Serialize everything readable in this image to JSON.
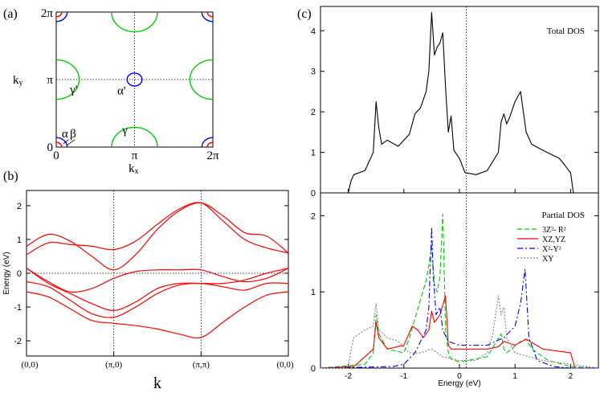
{
  "chart_data": [
    {
      "panel_label": "(a)",
      "type": "scatter",
      "xlabel": "k",
      "xlabel_sub": "x",
      "ylabel": "k",
      "ylabel_sub": "y",
      "xticks": [
        "0",
        "π",
        "2π"
      ],
      "yticks": [
        "0",
        "π",
        "2π"
      ],
      "grid": "dotted lines at π",
      "annotations": [
        {
          "text": "α",
          "x": 0.22,
          "y": 0.45
        },
        {
          "text": "β",
          "x": 0.55,
          "y": 0.45
        },
        {
          "text": "γ'",
          "x": 0.55,
          "y": 2.5
        },
        {
          "text": "α'",
          "x": 2.45,
          "y": 2.45
        },
        {
          "text": "γ",
          "x": 2.65,
          "y": 0.62
        }
      ],
      "pockets": [
        {
          "color": "#ff0000",
          "center": [
            0,
            0
          ],
          "radius": 0.22
        },
        {
          "color": "#0000ff",
          "center": [
            0,
            0
          ],
          "radius": 0.44
        },
        {
          "color": "#00cc00",
          "center": [
            3.1416,
            0
          ],
          "radius": 0.92
        },
        {
          "color": "#00cc00",
          "center": [
            0,
            3.1416
          ],
          "radius": 0.92
        },
        {
          "color": "#0000ff",
          "center": [
            3.1416,
            3.1416
          ],
          "radius": 0.3
        }
      ]
    },
    {
      "panel_label": "(b)",
      "type": "line",
      "xlabel": "k",
      "ylabel": "Energy (eV)",
      "xticks": [
        "(0,0)",
        "(π,0)",
        "(π,π)",
        "(0,0)"
      ],
      "yticks": [
        -2,
        -1,
        0,
        1,
        2
      ],
      "ylim": [
        -2.45,
        2.45
      ],
      "color": "#ff0000",
      "x": [
        0,
        0.25,
        0.5,
        0.75,
        1,
        1.25,
        1.5,
        1.75,
        2,
        2.25,
        2.5,
        2.75,
        3
      ],
      "bands": [
        [
          0.8,
          1.15,
          0.95,
          0.5,
          0.1,
          0.55,
          1.3,
          1.85,
          2.08,
          1.7,
          1.2,
          1.1,
          0.6
        ],
        [
          0.55,
          0.9,
          0.85,
          0.8,
          0.7,
          0.95,
          1.45,
          1.9,
          2.08,
          1.55,
          1.0,
          0.75,
          0.6
        ],
        [
          0.15,
          -0.25,
          -0.55,
          -0.45,
          -0.15,
          0.05,
          0.1,
          0.1,
          0.1,
          -0.1,
          -0.25,
          -0.15,
          0.15
        ],
        [
          0.15,
          -0.3,
          -0.6,
          -0.9,
          -1.1,
          -0.85,
          -0.45,
          -0.3,
          -0.3,
          -0.3,
          -0.2,
          0.0,
          0.15
        ],
        [
          -0.25,
          -0.4,
          -0.8,
          -1.2,
          -1.3,
          -1.0,
          -0.6,
          -0.35,
          -0.3,
          -0.4,
          -0.5,
          -0.3,
          -0.3
        ],
        [
          -0.55,
          -0.7,
          -1.05,
          -1.4,
          -1.48,
          -1.55,
          -1.65,
          -1.8,
          -1.9,
          -1.45,
          -1.0,
          -0.65,
          -0.55
        ]
      ]
    },
    {
      "panel_label": "(c)",
      "type": "line",
      "subpanel_title": "Total DOS",
      "xlim": [
        -2.5,
        2.5
      ],
      "ylim": [
        0,
        4.6
      ],
      "yticks": [
        0,
        1,
        2,
        3,
        4
      ],
      "series": [
        {
          "color": "#000000",
          "x": [
            -2.5,
            -2.0,
            -1.95,
            -1.9,
            -1.7,
            -1.55,
            -1.5,
            -1.45,
            -1.4,
            -1.3,
            -1.1,
            -0.9,
            -0.8,
            -0.7,
            -0.6,
            -0.55,
            -0.5,
            -0.45,
            -0.4,
            -0.35,
            -0.3,
            -0.25,
            -0.2,
            -0.15,
            -0.1,
            -0.05,
            0.0,
            0.1,
            0.3,
            0.5,
            0.7,
            0.75,
            0.8,
            0.85,
            0.9,
            1.0,
            1.1,
            1.2,
            1.3,
            1.5,
            1.8,
            2.0,
            2.05,
            2.5
          ],
          "y": [
            0,
            0,
            0.3,
            0.45,
            0.55,
            1.0,
            2.25,
            1.6,
            1.2,
            1.3,
            1.15,
            1.45,
            1.95,
            2.1,
            2.5,
            3.0,
            4.45,
            3.4,
            3.6,
            3.7,
            3.95,
            2.6,
            1.5,
            1.9,
            1.05,
            0.95,
            0.85,
            0.5,
            0.45,
            0.55,
            1.0,
            1.75,
            1.95,
            1.7,
            1.85,
            2.25,
            2.5,
            1.5,
            1.2,
            1.05,
            0.85,
            0.5,
            0,
            0
          ]
        }
      ]
    },
    {
      "panel_label": "",
      "type": "line",
      "subpanel_title": "Partial DOS",
      "xlabel": "Energy (eV)",
      "xlim": [
        -2.5,
        2.5
      ],
      "xticks": [
        -2,
        -1,
        0,
        1,
        2
      ],
      "ylim": [
        0,
        2.3
      ],
      "yticks": [
        0,
        1,
        2
      ],
      "legend": "top-right",
      "series": [
        {
          "name": "3Z²- R²",
          "color": "#00cc00",
          "dash": "6,3",
          "x": [
            -2.5,
            -1.7,
            -1.55,
            -1.5,
            -1.45,
            -1.3,
            -1.0,
            -0.9,
            -0.8,
            -0.7,
            -0.6,
            -0.55,
            -0.5,
            -0.45,
            -0.4,
            -0.35,
            -0.3,
            -0.28,
            -0.25,
            -0.2,
            -0.15,
            0.0,
            0.5,
            0.75,
            0.8,
            0.85,
            1.1,
            1.2,
            1.3,
            1.6,
            2.0,
            2.5
          ],
          "y": [
            0,
            0.05,
            0.2,
            0.7,
            0.45,
            0.25,
            0.2,
            0.4,
            0.65,
            0.9,
            1.15,
            1.35,
            1.6,
            1.1,
            1.0,
            1.2,
            2.02,
            1.5,
            0.5,
            0.2,
            0.12,
            0.08,
            0.15,
            0.45,
            0.25,
            0.2,
            0.35,
            0.38,
            0.25,
            0.1,
            0.02,
            0
          ]
        },
        {
          "name": "XZ,YZ",
          "color": "#ff0000",
          "dash": "",
          "x": [
            -2.5,
            -1.9,
            -1.7,
            -1.55,
            -1.5,
            -1.45,
            -1.3,
            -1.0,
            -0.85,
            -0.75,
            -0.65,
            -0.55,
            -0.5,
            -0.45,
            -0.35,
            -0.25,
            -0.2,
            -0.15,
            0.0,
            0.5,
            0.7,
            0.8,
            1.0,
            1.2,
            1.5,
            2.0,
            2.08,
            2.5
          ],
          "y": [
            0,
            0.02,
            0.15,
            0.25,
            0.6,
            0.4,
            0.25,
            0.3,
            0.55,
            0.5,
            0.4,
            0.5,
            0.75,
            0.6,
            0.7,
            0.95,
            0.3,
            0.25,
            0.25,
            0.25,
            0.28,
            0.35,
            0.3,
            0.38,
            0.25,
            0.2,
            0,
            0
          ]
        },
        {
          "name": "X²-Y²",
          "color": "#0000ff",
          "dash": "7,3,2,3",
          "x": [
            -2.5,
            -1.2,
            -1.0,
            -0.8,
            -0.6,
            -0.55,
            -0.5,
            -0.47,
            -0.42,
            -0.35,
            -0.3,
            -0.2,
            0.0,
            0.5,
            0.8,
            1.0,
            1.1,
            1.18,
            1.25,
            1.4,
            1.7,
            2.0,
            2.5
          ],
          "y": [
            0,
            0.02,
            0.05,
            0.2,
            0.5,
            0.8,
            1.85,
            1.2,
            0.7,
            0.8,
            0.5,
            0.35,
            0.3,
            0.3,
            0.4,
            0.55,
            0.85,
            1.3,
            0.4,
            0.1,
            0.02,
            0,
            0
          ]
        },
        {
          "name": "XY",
          "color": "#808080",
          "dash": "2,2",
          "x": [
            -2.5,
            -2.0,
            -1.95,
            -1.9,
            -1.7,
            -1.55,
            -1.5,
            -1.45,
            -1.3,
            -1.1,
            -0.9,
            -0.7,
            -0.5,
            -0.3,
            0.0,
            0.3,
            0.5,
            0.6,
            0.7,
            0.75,
            0.8,
            0.85,
            1.0,
            1.5,
            2.0,
            2.5
          ],
          "y": [
            0,
            0,
            0.25,
            0.4,
            0.5,
            0.55,
            0.85,
            0.5,
            0.4,
            0.35,
            0.2,
            0.2,
            0.25,
            0.15,
            0.1,
            0.1,
            0.2,
            0.45,
            0.95,
            0.7,
            0.8,
            0.4,
            0.2,
            0.1,
            0.05,
            0
          ]
        }
      ]
    }
  ]
}
